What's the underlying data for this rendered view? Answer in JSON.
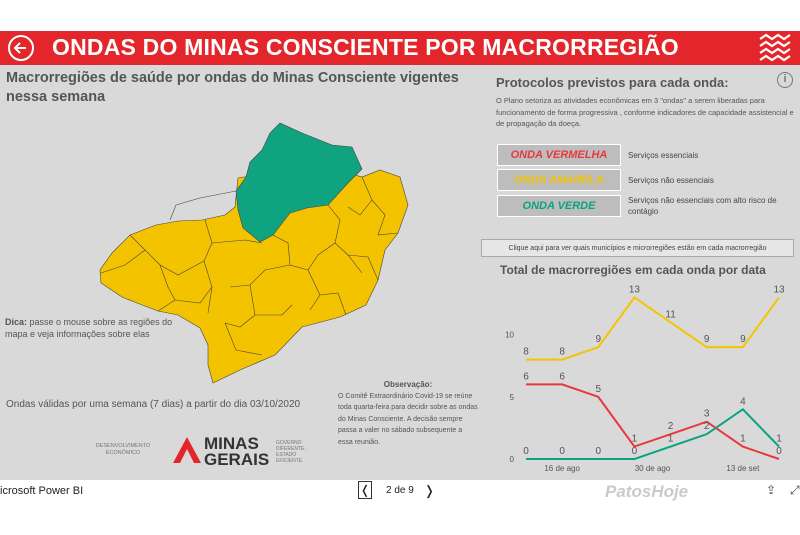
{
  "banner": {
    "title": "ONDAS DO MINAS CONSCIENTE POR MACRORREGIÃO"
  },
  "left": {
    "heading": "Macrorregiões de saúde por ondas do Minas Consciente vigentes nessa semana",
    "tip_bold": "Dica:",
    "tip_text": " passe o mouse sobre as regiões do mapa e veja informações sobre elas",
    "validity": "Ondas válidas por uma semana (7 dias) a partir do dia 03/10/2020",
    "obs_title": "Observação:",
    "obs_text": "O Comitê Extraordinário Covid-19 se reúne toda quarta-feira para decidir sobre as ondas do Minas Consciente. A decisão sempre passa a valer no sábado subsequente a essa reunião.",
    "dev": "DESENVOLVIMENTO ECONÔMICO",
    "logo_text_1": "MINAS",
    "logo_text_2": "GERAIS",
    "logo_sub": "GOVERNO DIFERENTE. ESTADO EFICIENTE."
  },
  "right": {
    "heading": "Protocolos previstos para cada onda:",
    "info_icon": "i",
    "desc": "O Plano setoriza as atividades econômicas em 3 \"ondas\" a serem liberadas para funcionamento de forma progressiva , conforme indicadores de capacidade assistencial e de propagação da doeça.",
    "waves": [
      {
        "label": "ONDA VERMELHA",
        "desc": "Serviços essenciais",
        "color": "#e8383d"
      },
      {
        "label": "ONDA AMARELA",
        "desc": "Serviços não essenciais",
        "color": "#f5c400"
      },
      {
        "label": "ONDA VERDE",
        "desc": "Serviços não essenciais com alto risco de contágio",
        "color": "#0aa37f"
      }
    ],
    "click": "Clique aqui para ver quais municípios e microrregiões estão em cada macrorregião"
  },
  "chart_data": {
    "type": "line",
    "title": "Total de macrorregiões em cada onda por data",
    "x_ticks": [
      "16 de ago",
      "30 de ago",
      "13 de set"
    ],
    "y_ticks": [
      0,
      5,
      10
    ],
    "ylim": [
      0,
      14
    ],
    "series": [
      {
        "name": "",
        "color": "#f5c400",
        "values": [
          8,
          8,
          9,
          13,
          11,
          9,
          9,
          13
        ]
      },
      {
        "name": "",
        "color": "#e8383d",
        "values": [
          6,
          6,
          5,
          1,
          2,
          3,
          1,
          0
        ]
      },
      {
        "name": "",
        "color": "#0aa37f",
        "values": [
          0,
          0,
          0,
          0,
          1,
          2,
          4,
          1
        ]
      }
    ]
  },
  "bottom": {
    "app": "icrosoft Power BI",
    "prev": "❬",
    "page": "2 de 9",
    "next": "❭",
    "watermark": "PatosHoje",
    "share": "⇪",
    "expand": "⤢"
  }
}
